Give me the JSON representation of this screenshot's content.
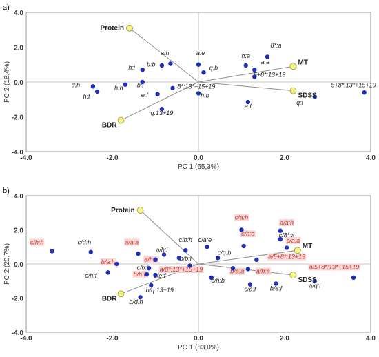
{
  "chart_data": [
    {
      "type": "scatter",
      "panel_label": "a)",
      "xlabel": "PC 1 (65,3%)",
      "ylabel": "PC 2 (18,4%)",
      "xlim": [
        -4.0,
        4.0
      ],
      "ylim": [
        -4.0,
        4.0
      ],
      "xticks": [
        "-4.0",
        "-2.0",
        "0.0",
        "2.0",
        "4.0"
      ],
      "yticks": [
        "4.0",
        "2.0",
        "0.0",
        "-2.0",
        "-4.0"
      ],
      "grid": false,
      "loadings": [
        {
          "label": "Protein",
          "x": -1.6,
          "y": 3.1
        },
        {
          "label": "MT",
          "x": 2.2,
          "y": 0.9
        },
        {
          "label": "SDSS",
          "x": 2.2,
          "y": -0.5
        },
        {
          "label": "BDR",
          "x": -1.8,
          "y": -2.2
        }
      ],
      "points": [
        {
          "label": "a:h",
          "x": -0.65,
          "y": 1.05,
          "lx": -0.78,
          "ly": 1.55
        },
        {
          "label": "b:b",
          "x": -0.85,
          "y": 0.95,
          "lx": -1.1,
          "ly": 0.9
        },
        {
          "label": "a:e",
          "x": 0.0,
          "y": 1.0,
          "lx": 0.05,
          "ly": 1.55
        },
        {
          "label": "q:b",
          "x": 0.12,
          "y": 0.55,
          "lx": 0.35,
          "ly": 0.7
        },
        {
          "label": "h:a",
          "x": 1.1,
          "y": 0.95,
          "lx": 1.1,
          "ly": 1.38
        },
        {
          "label": "8*:a",
          "x": 1.6,
          "y": 1.45,
          "lx": 1.8,
          "ly": 1.98
        },
        {
          "label": "a:a",
          "x": 1.3,
          "y": 0.7,
          "lx": 1.55,
          "ly": 1.02
        },
        {
          "label": "5+8*:13+19",
          "x": 1.3,
          "y": 0.3,
          "lx": 1.65,
          "ly": 0.3
        },
        {
          "label": "h:i",
          "x": -1.3,
          "y": 0.7,
          "lx": -1.55,
          "ly": 0.72
        },
        {
          "label": "b:i",
          "x": -1.3,
          "y": 0.0,
          "lx": -1.35,
          "ly": -0.3
        },
        {
          "label": "h:h",
          "x": -1.7,
          "y": -0.15,
          "lx": -1.85,
          "ly": -0.45
        },
        {
          "label": "e:f",
          "x": -0.95,
          "y": -0.7,
          "lx": -1.25,
          "ly": -0.88
        },
        {
          "label": "8*:13*+15+19",
          "x": -0.6,
          "y": -0.35,
          "lx": -0.05,
          "ly": -0.38
        },
        {
          "label": "h:b",
          "x": 0.0,
          "y": -0.65,
          "lx": 0.15,
          "ly": -0.9
        },
        {
          "label": "q:13+19",
          "x": -0.85,
          "y": -1.55,
          "lx": -0.85,
          "ly": -1.9
        },
        {
          "label": "a:f",
          "x": 1.15,
          "y": -1.15,
          "lx": 1.15,
          "ly": -1.5
        },
        {
          "label": "q:i",
          "x": 2.7,
          "y": -0.85,
          "lx": 2.35,
          "ly": -1.3
        },
        {
          "label": "d:h",
          "x": -2.45,
          "y": -0.25,
          "lx": -2.85,
          "ly": -0.3
        },
        {
          "label": "h:f",
          "x": -2.35,
          "y": -0.55,
          "lx": -2.6,
          "ly": -0.95
        },
        {
          "label": "5+8*:13*+15+19",
          "x": 3.85,
          "y": -0.6,
          "lx": 3.6,
          "ly": -0.3
        }
      ]
    },
    {
      "type": "scatter",
      "panel_label": "b)",
      "xlabel": "PC 1 (63,0%)",
      "ylabel": "PC 2 (20,7%)",
      "xlim": [
        -4.0,
        4.0
      ],
      "ylim": [
        -4.0,
        4.0
      ],
      "xticks": [
        "-4.0",
        "-2.0",
        "0.0",
        "2.0",
        "4.0"
      ],
      "yticks": [
        "4.0",
        "2.0",
        "0.0",
        "-2.0",
        "-4.0"
      ],
      "grid": false,
      "loadings": [
        {
          "label": "Protein",
          "x": -1.35,
          "y": 3.15
        },
        {
          "label": "MT",
          "x": 2.3,
          "y": 0.8
        },
        {
          "label": "SDSS",
          "x": 2.2,
          "y": -0.65
        },
        {
          "label": "BDR",
          "x": -1.8,
          "y": -1.75
        }
      ],
      "points": [
        {
          "label": "c/h:h",
          "x": -3.4,
          "y": 0.75,
          "lx": -3.75,
          "ly": 1.15,
          "hl": true
        },
        {
          "label": "c/d:h",
          "x": -2.5,
          "y": 0.7,
          "lx": -2.65,
          "ly": 1.15,
          "hl": false
        },
        {
          "label": "a/a:a",
          "x": -1.4,
          "y": 0.6,
          "lx": -1.55,
          "ly": 1.15,
          "hl": true
        },
        {
          "label": "b/a:h",
          "x": -1.9,
          "y": 0.0,
          "lx": -2.1,
          "ly": 0.0,
          "hl": true
        },
        {
          "label": "c/h:f",
          "x": -2.1,
          "y": -0.5,
          "lx": -2.5,
          "ly": -0.8,
          "hl": false
        },
        {
          "label": "c/b:h",
          "x": -0.3,
          "y": 0.8,
          "lx": -0.3,
          "ly": 1.3,
          "hl": false
        },
        {
          "label": "a/h:i",
          "x": -0.8,
          "y": 0.55,
          "lx": -0.85,
          "ly": 0.7,
          "hl": false
        },
        {
          "label": "b/b:i",
          "x": -0.45,
          "y": 0.35,
          "lx": -0.3,
          "ly": 0.2,
          "hl": false
        },
        {
          "label": "a/h:h",
          "x": -1.0,
          "y": 0.25,
          "lx": -1.1,
          "ly": 0.15,
          "hl": true
        },
        {
          "label": "c/b:i",
          "x": -1.15,
          "y": -0.25,
          "lx": -1.3,
          "ly": -0.35,
          "hl": false
        },
        {
          "label": "b/h:h",
          "x": -1.2,
          "y": -0.6,
          "lx": -1.35,
          "ly": -0.72,
          "hl": true
        },
        {
          "label": "c/e:f",
          "x": -1.0,
          "y": -0.65,
          "lx": -0.9,
          "ly": -0.8,
          "hl": false
        },
        {
          "label": "a/8*:13*+15+19",
          "x": -0.2,
          "y": -0.1,
          "lx": -0.4,
          "ly": -0.45,
          "hl": true
        },
        {
          "label": "b/q:13+19",
          "x": -1.1,
          "y": -1.25,
          "lx": -0.9,
          "ly": -1.65,
          "hl": false
        },
        {
          "label": "b/d:h",
          "x": -1.35,
          "y": -1.95,
          "lx": -1.45,
          "ly": -2.35,
          "hl": false
        },
        {
          "label": "c/a:e",
          "x": 0.2,
          "y": 1.0,
          "lx": 0.15,
          "ly": 1.3,
          "hl": false
        },
        {
          "label": "c/q:b",
          "x": 0.45,
          "y": 0.35,
          "lx": 0.6,
          "ly": 0.55,
          "hl": false
        },
        {
          "label": "c/h:b",
          "x": 0.3,
          "y": -0.8,
          "lx": 0.45,
          "ly": -1.1,
          "hl": false
        },
        {
          "label": "c/a:h",
          "x": 1.0,
          "y": 2.0,
          "lx": 1.0,
          "ly": 2.6,
          "hl": true
        },
        {
          "label": "c/h:a",
          "x": 1.05,
          "y": 1.05,
          "lx": 1.15,
          "ly": 1.65,
          "hl": true
        },
        {
          "label": "b/a:a",
          "x": 0.8,
          "y": -0.25,
          "lx": 0.9,
          "ly": -0.55,
          "hl": true
        },
        {
          "label": "a/h:a",
          "x": 1.15,
          "y": -0.3,
          "lx": 1.5,
          "ly": -0.55,
          "hl": true
        },
        {
          "label": "a/5+8*:13+19",
          "x": 1.35,
          "y": 0.25,
          "lx": 2.05,
          "ly": 0.3,
          "hl": true
        },
        {
          "label": "a/a:h",
          "x": 1.9,
          "y": 1.95,
          "lx": 2.05,
          "ly": 2.3,
          "hl": true
        },
        {
          "label": "c/8*:a",
          "x": 1.9,
          "y": 1.45,
          "lx": 2.05,
          "ly": 1.55,
          "hl": false
        },
        {
          "label": "c/a:a",
          "x": 2.05,
          "y": 0.95,
          "lx": 2.2,
          "ly": 1.25,
          "hl": true
        },
        {
          "label": "c/a:f",
          "x": 1.2,
          "y": -1.2,
          "lx": 1.2,
          "ly": -1.6,
          "hl": false
        },
        {
          "label": "b/e:f",
          "x": 1.8,
          "y": -1.15,
          "lx": 1.8,
          "ly": -1.55,
          "hl": false
        },
        {
          "label": "a/q:i",
          "x": 2.7,
          "y": -1.0,
          "lx": 2.7,
          "ly": -1.4,
          "hl": false
        },
        {
          "label": "a/5+8*:13*+15+19",
          "x": 3.6,
          "y": -0.8,
          "lx": 3.15,
          "ly": -0.3,
          "hl": true
        }
      ]
    }
  ]
}
